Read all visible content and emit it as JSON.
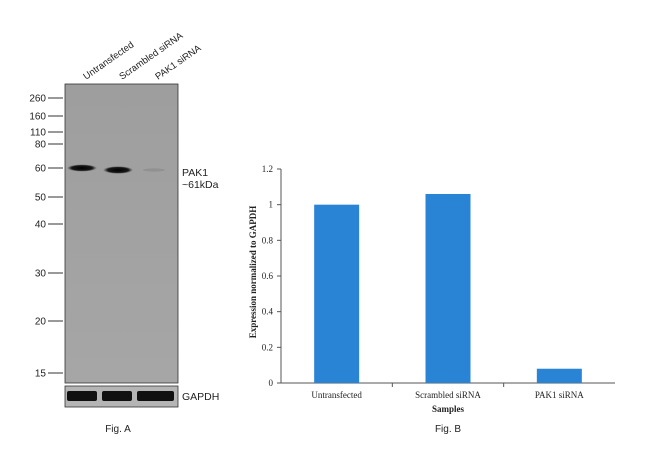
{
  "figure_a": {
    "lane_labels": [
      "Untransfected",
      "Scrambled siRNA",
      "PAK1 siRNA"
    ],
    "mw_markers": [
      "260",
      "160",
      "110",
      "80",
      "60",
      "50",
      "40",
      "30",
      "20",
      "15"
    ],
    "target_label": "PAK1",
    "target_size": "~61kDa",
    "loading_control_label": "GAPDH",
    "caption": "Fig. A"
  },
  "figure_b": {
    "caption": "Fig. B"
  },
  "chart_data": {
    "type": "bar",
    "categories": [
      "Untransfected",
      "Scrambled siRNA",
      "PAK1 siRNA"
    ],
    "values": [
      1.0,
      1.06,
      0.08
    ],
    "xlabel": "Samples",
    "ylabel": "Expression normalized to GAPDH",
    "ylim": [
      0,
      1.2
    ],
    "yticks": [
      "0",
      "0.2",
      "0.4",
      "0.6",
      "0.8",
      "1",
      "1.2"
    ],
    "grid": false,
    "bar_color": "#2a84d6"
  }
}
